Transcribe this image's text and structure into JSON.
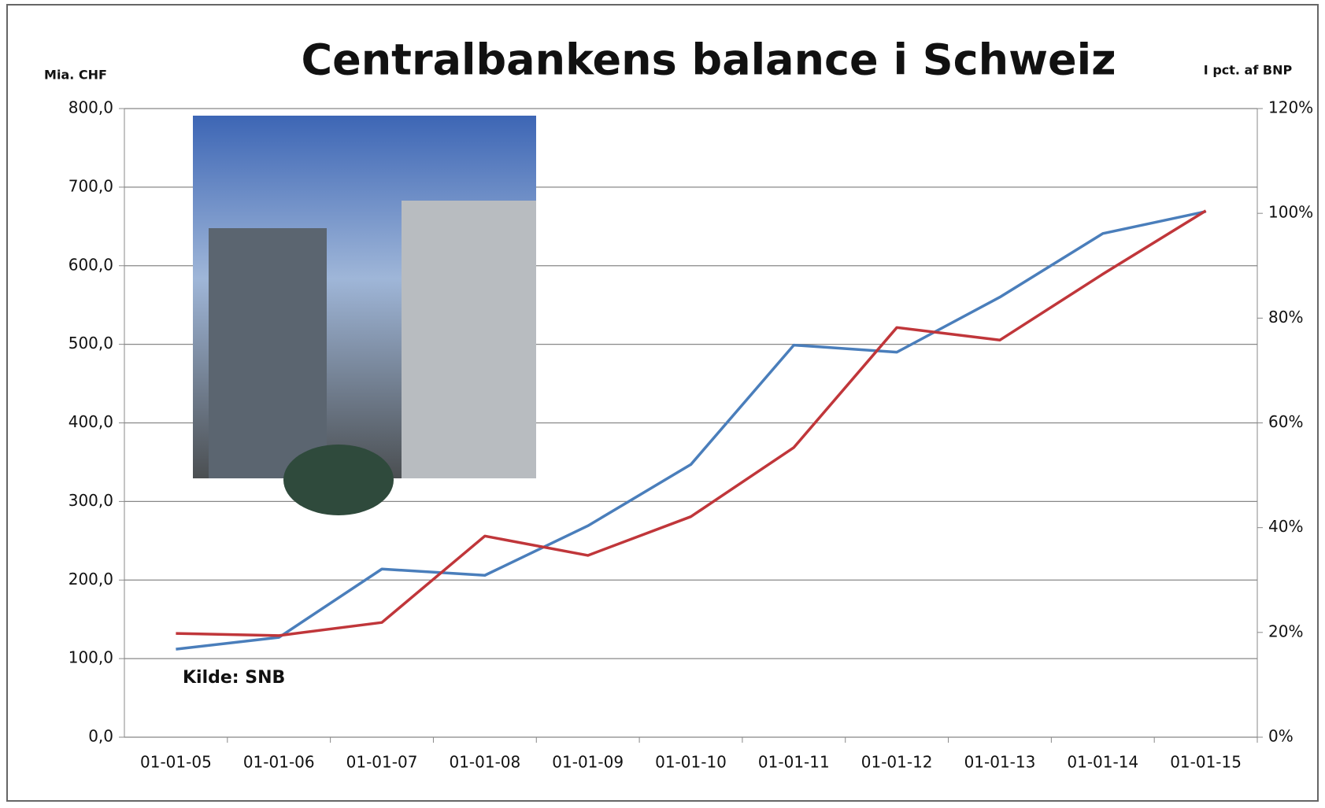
{
  "chart_data": {
    "type": "line",
    "title": "Centralbankens balance i Schweiz",
    "y_label": "Mia. CHF",
    "y2_label": "I pct. af BNP",
    "annotation": "Kilde:  SNB",
    "categories": [
      "01-01-05",
      "01-01-06",
      "01-01-07",
      "01-01-08",
      "01-01-09",
      "01-01-10",
      "01-01-11",
      "01-01-12",
      "01-01-13",
      "01-01-14",
      "01-01-15"
    ],
    "series": [
      {
        "color": "#4a7ebb",
        "values": [
          112,
          127,
          214,
          206,
          269,
          347,
          499,
          490,
          560,
          641,
          669
        ]
      },
      {
        "color": "#c0363a",
        "axis": "y2",
        "values": [
          19.8,
          19.4,
          21.9,
          38.4,
          34.7,
          42.1,
          55.3,
          78.2,
          75.8,
          88.4,
          100.5
        ]
      }
    ],
    "ylim": [
      0,
      800
    ],
    "yticks": [
      {
        "value": 0,
        "label": "0,0"
      },
      {
        "value": 100,
        "label": "100,0"
      },
      {
        "value": 200,
        "label": "200,0"
      },
      {
        "value": 300,
        "label": "300,0"
      },
      {
        "value": 400,
        "label": "400,0"
      },
      {
        "value": 500,
        "label": "500,0"
      },
      {
        "value": 600,
        "label": "600,0"
      },
      {
        "value": 700,
        "label": "700,0"
      },
      {
        "value": 800,
        "label": "800,0"
      }
    ],
    "y2lim": [
      0,
      120
    ],
    "y2ticks": [
      {
        "value": 0,
        "label": "0%"
      },
      {
        "value": 20,
        "label": "20%"
      },
      {
        "value": 40,
        "label": "40%"
      },
      {
        "value": 60,
        "label": "60%"
      },
      {
        "value": 80,
        "label": "80%"
      },
      {
        "value": 100,
        "label": "100%"
      },
      {
        "value": 120,
        "label": "120%"
      }
    ],
    "grid": true
  }
}
